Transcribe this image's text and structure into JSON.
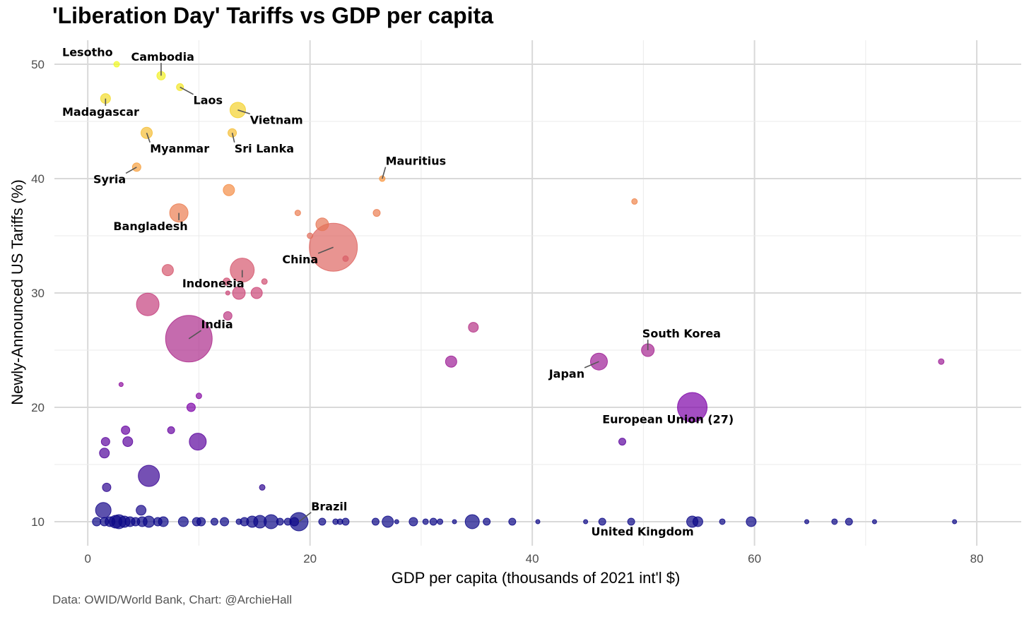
{
  "chart_data": {
    "type": "scatter",
    "title": "'Liberation Day' Tariffs vs GDP per capita",
    "xlabel": "GDP per capita (thousands of 2021 int'l $)",
    "ylabel": "Newly-Announced US Tariffs (%)",
    "caption": "Data: OWID/World Bank, Chart: @ArchieHall",
    "xlim": [
      -3,
      84
    ],
    "ylim": [
      7.9,
      52.1
    ],
    "xticks": [
      0,
      20,
      40,
      60,
      80
    ],
    "yticks": [
      10,
      20,
      30,
      40,
      50
    ],
    "grid": true,
    "size_note": "bubble size proportional to population (radius units)",
    "color_note": "color mapped to tariff: 10 dark blue -> 50 yellow (plasma)",
    "points": [
      {
        "x": 2.6,
        "y": 50,
        "r": 4
      },
      {
        "x": 6.6,
        "y": 49,
        "r": 6
      },
      {
        "x": 8.3,
        "y": 48,
        "r": 5
      },
      {
        "x": 1.6,
        "y": 47,
        "r": 7
      },
      {
        "x": 13.5,
        "y": 46,
        "r": 11
      },
      {
        "x": 5.3,
        "y": 44,
        "r": 8
      },
      {
        "x": 13.0,
        "y": 44,
        "r": 6
      },
      {
        "x": 4.4,
        "y": 41,
        "r": 6
      },
      {
        "x": 26.5,
        "y": 40,
        "r": 4
      },
      {
        "x": 12.7,
        "y": 39,
        "r": 8
      },
      {
        "x": 49.2,
        "y": 38,
        "r": 4
      },
      {
        "x": 8.2,
        "y": 37,
        "r": 13
      },
      {
        "x": 18.9,
        "y": 37,
        "r": 4
      },
      {
        "x": 26.0,
        "y": 37,
        "r": 5
      },
      {
        "x": 21.1,
        "y": 36,
        "r": 9
      },
      {
        "x": 20.0,
        "y": 35,
        "r": 4
      },
      {
        "x": 22.1,
        "y": 34,
        "r": 34
      },
      {
        "x": 23.2,
        "y": 33,
        "r": 4
      },
      {
        "x": 7.2,
        "y": 32,
        "r": 8
      },
      {
        "x": 13.9,
        "y": 32,
        "r": 17
      },
      {
        "x": 15.9,
        "y": 31,
        "r": 4
      },
      {
        "x": 12.5,
        "y": 31,
        "r": 5
      },
      {
        "x": 12.6,
        "y": 30,
        "r": 3
      },
      {
        "x": 13.6,
        "y": 30,
        "r": 9
      },
      {
        "x": 15.2,
        "y": 30,
        "r": 8
      },
      {
        "x": 5.4,
        "y": 29,
        "r": 16
      },
      {
        "x": 12.6,
        "y": 28,
        "r": 6
      },
      {
        "x": 34.7,
        "y": 27,
        "r": 7
      },
      {
        "x": 9.1,
        "y": 26,
        "r": 33
      },
      {
        "x": 50.4,
        "y": 25,
        "r": 9
      },
      {
        "x": 32.7,
        "y": 24,
        "r": 8
      },
      {
        "x": 46.0,
        "y": 24,
        "r": 12
      },
      {
        "x": 76.8,
        "y": 24,
        "r": 4
      },
      {
        "x": 3.0,
        "y": 22,
        "r": 3
      },
      {
        "x": 10.0,
        "y": 21,
        "r": 4
      },
      {
        "x": 9.3,
        "y": 20,
        "r": 6
      },
      {
        "x": 54.4,
        "y": 20,
        "r": 21
      },
      {
        "x": 3.4,
        "y": 18,
        "r": 6
      },
      {
        "x": 7.5,
        "y": 18,
        "r": 5
      },
      {
        "x": 1.6,
        "y": 17,
        "r": 6
      },
      {
        "x": 3.6,
        "y": 17,
        "r": 7
      },
      {
        "x": 9.9,
        "y": 17,
        "r": 12
      },
      {
        "x": 48.1,
        "y": 17,
        "r": 5
      },
      {
        "x": 1.5,
        "y": 16,
        "r": 7
      },
      {
        "x": 5.5,
        "y": 14,
        "r": 15
      },
      {
        "x": 1.7,
        "y": 13,
        "r": 6
      },
      {
        "x": 15.7,
        "y": 13,
        "r": 4
      },
      {
        "x": 1.4,
        "y": 11,
        "r": 11
      },
      {
        "x": 4.8,
        "y": 11,
        "r": 7
      },
      {
        "x": 0.8,
        "y": 10,
        "r": 6
      },
      {
        "x": 1.5,
        "y": 10,
        "r": 6
      },
      {
        "x": 2.0,
        "y": 10,
        "r": 7
      },
      {
        "x": 2.5,
        "y": 10,
        "r": 9
      },
      {
        "x": 2.8,
        "y": 10,
        "r": 10
      },
      {
        "x": 3.3,
        "y": 10,
        "r": 8
      },
      {
        "x": 3.8,
        "y": 10,
        "r": 7
      },
      {
        "x": 4.3,
        "y": 10,
        "r": 6
      },
      {
        "x": 4.9,
        "y": 10,
        "r": 7
      },
      {
        "x": 5.5,
        "y": 10,
        "r": 8
      },
      {
        "x": 6.3,
        "y": 10,
        "r": 6
      },
      {
        "x": 6.8,
        "y": 10,
        "r": 7
      },
      {
        "x": 8.6,
        "y": 10,
        "r": 7
      },
      {
        "x": 9.8,
        "y": 10,
        "r": 6
      },
      {
        "x": 10.2,
        "y": 10,
        "r": 6
      },
      {
        "x": 11.4,
        "y": 10,
        "r": 5
      },
      {
        "x": 12.3,
        "y": 10,
        "r": 6
      },
      {
        "x": 13.6,
        "y": 10,
        "r": 4
      },
      {
        "x": 14.1,
        "y": 10,
        "r": 6
      },
      {
        "x": 14.8,
        "y": 10,
        "r": 8
      },
      {
        "x": 15.5,
        "y": 10,
        "r": 9
      },
      {
        "x": 16.5,
        "y": 10,
        "r": 10
      },
      {
        "x": 17.3,
        "y": 10,
        "r": 5
      },
      {
        "x": 18.0,
        "y": 10,
        "r": 5
      },
      {
        "x": 18.6,
        "y": 10,
        "r": 6
      },
      {
        "x": 19.0,
        "y": 10,
        "r": 13
      },
      {
        "x": 21.1,
        "y": 10,
        "r": 5
      },
      {
        "x": 22.3,
        "y": 10,
        "r": 4
      },
      {
        "x": 22.7,
        "y": 10,
        "r": 4
      },
      {
        "x": 23.2,
        "y": 10,
        "r": 5
      },
      {
        "x": 25.9,
        "y": 10,
        "r": 5
      },
      {
        "x": 27.0,
        "y": 10,
        "r": 8
      },
      {
        "x": 27.8,
        "y": 10,
        "r": 3
      },
      {
        "x": 29.3,
        "y": 10,
        "r": 6
      },
      {
        "x": 30.4,
        "y": 10,
        "r": 4
      },
      {
        "x": 31.1,
        "y": 10,
        "r": 5
      },
      {
        "x": 31.7,
        "y": 10,
        "r": 4
      },
      {
        "x": 33.0,
        "y": 10,
        "r": 3
      },
      {
        "x": 34.6,
        "y": 10,
        "r": 10
      },
      {
        "x": 35.9,
        "y": 10,
        "r": 5
      },
      {
        "x": 38.2,
        "y": 10,
        "r": 5
      },
      {
        "x": 40.5,
        "y": 10,
        "r": 3
      },
      {
        "x": 44.8,
        "y": 10,
        "r": 3
      },
      {
        "x": 46.3,
        "y": 10,
        "r": 5
      },
      {
        "x": 48.9,
        "y": 10,
        "r": 5
      },
      {
        "x": 54.4,
        "y": 10,
        "r": 8
      },
      {
        "x": 54.9,
        "y": 10,
        "r": 7
      },
      {
        "x": 57.1,
        "y": 10,
        "r": 4
      },
      {
        "x": 59.7,
        "y": 10,
        "r": 7
      },
      {
        "x": 64.7,
        "y": 10,
        "r": 3
      },
      {
        "x": 67.2,
        "y": 10,
        "r": 4
      },
      {
        "x": 68.5,
        "y": 10,
        "r": 5
      },
      {
        "x": 70.8,
        "y": 10,
        "r": 3
      },
      {
        "x": 78.0,
        "y": 10,
        "r": 3
      }
    ],
    "annotations": [
      {
        "text": "Lesotho",
        "x": 2.6,
        "y": 50,
        "tx": -2.3,
        "ty": 50.7
      },
      {
        "text": "Cambodia",
        "x": 6.6,
        "y": 49,
        "tx": 3.9,
        "ty": 50.3
      },
      {
        "text": "Laos",
        "x": 8.3,
        "y": 48,
        "tx": 9.5,
        "ty": 46.5
      },
      {
        "text": "Madagascar",
        "x": 1.6,
        "y": 47,
        "tx": -2.3,
        "ty": 45.5
      },
      {
        "text": "Vietnam",
        "x": 13.5,
        "y": 46,
        "tx": 14.6,
        "ty": 44.8
      },
      {
        "text": "Myanmar",
        "x": 5.3,
        "y": 44,
        "tx": 5.6,
        "ty": 42.3
      },
      {
        "text": "Sri Lanka",
        "x": 13.0,
        "y": 44,
        "tx": 13.2,
        "ty": 42.3
      },
      {
        "text": "Mauritius",
        "x": 26.5,
        "y": 40,
        "tx": 26.8,
        "ty": 41.2
      },
      {
        "text": "Syria",
        "x": 4.4,
        "y": 41,
        "tx": 0.5,
        "ty": 39.6
      },
      {
        "text": "Bangladesh",
        "x": 8.2,
        "y": 37,
        "tx": 2.3,
        "ty": 35.5
      },
      {
        "text": "China",
        "x": 22.1,
        "y": 34,
        "tx": 17.5,
        "ty": 32.6
      },
      {
        "text": "Indonesia",
        "x": 13.9,
        "y": 32,
        "tx": 8.5,
        "ty": 30.5
      },
      {
        "text": "India",
        "x": 9.1,
        "y": 26,
        "tx": 10.2,
        "ty": 26.9
      },
      {
        "text": "South Korea",
        "x": 50.4,
        "y": 25,
        "tx": 49.9,
        "ty": 26.1
      },
      {
        "text": "Japan",
        "x": 46.0,
        "y": 24,
        "tx": 41.5,
        "ty": 22.6
      },
      {
        "text": "European Union (27)",
        "x": 54.4,
        "y": 20,
        "tx": 46.3,
        "ty": 18.6
      },
      {
        "text": "Brazil",
        "x": 19.0,
        "y": 10,
        "tx": 20.1,
        "ty": 11.0
      },
      {
        "text": "United Kingdom",
        "x": 54.4,
        "y": 10,
        "tx": 45.3,
        "ty": 8.8
      }
    ]
  }
}
